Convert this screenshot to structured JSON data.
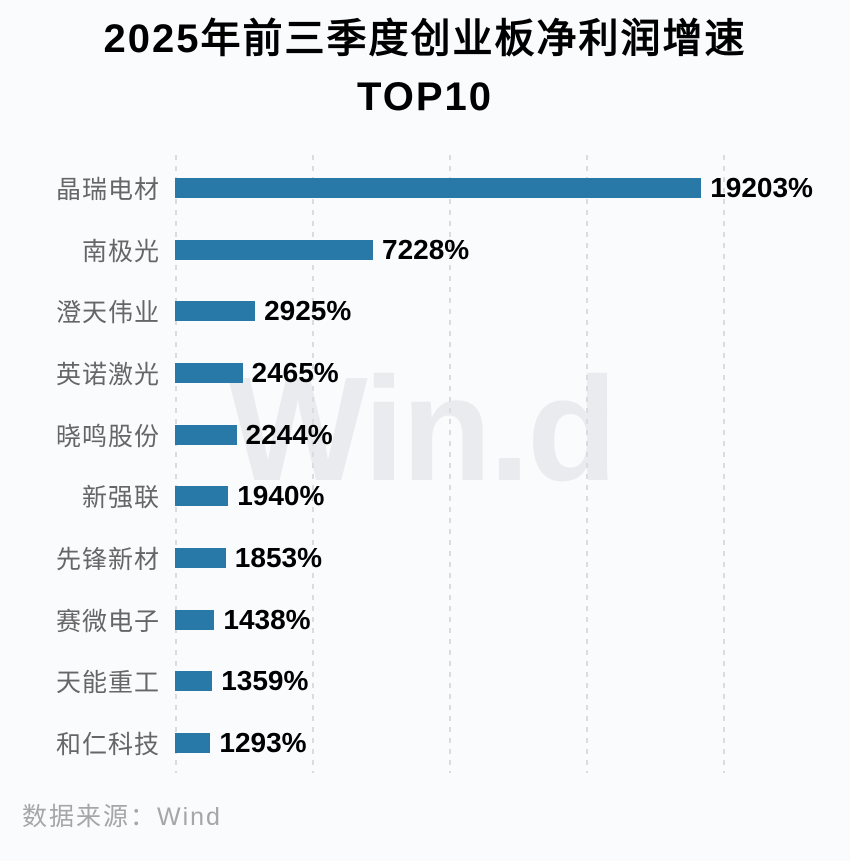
{
  "title": {
    "line1": "2025年前三季度创业板净利润增速",
    "line2": "TOP10"
  },
  "watermark": "Win.d",
  "source": "数据来源：Wind",
  "chart_data": {
    "type": "bar",
    "orientation": "horizontal",
    "title": "2025年前三季度创业板净利润增速 TOP10",
    "categories": [
      "晶瑞电材",
      "南极光",
      "澄天伟业",
      "英诺激光",
      "晓鸣股份",
      "新强联",
      "先锋新材",
      "赛微电子",
      "天能重工",
      "和仁科技"
    ],
    "values": [
      19203,
      7228,
      2925,
      2465,
      2244,
      1940,
      1853,
      1438,
      1359,
      1293
    ],
    "value_suffix": "%",
    "xlabel": "",
    "ylabel": "",
    "xlim": [
      0,
      22500
    ],
    "gridline_step": 5000,
    "grid": true,
    "gridline_style": "dashed",
    "legend": false,
    "value_labels": [
      "19203%",
      "7228%",
      "2925%",
      "2465%",
      "2244%",
      "1940%",
      "1853%",
      "1438%",
      "1359%",
      "1293%"
    ],
    "colors": {
      "bar": "#2878a8",
      "value_label": "#000000",
      "category_label": "#666666",
      "gridline": "#d9dce1",
      "background": "#fafbfd",
      "watermark": "#e9ebee",
      "source_text": "#a6a6a6",
      "title_text": "#000000"
    }
  }
}
